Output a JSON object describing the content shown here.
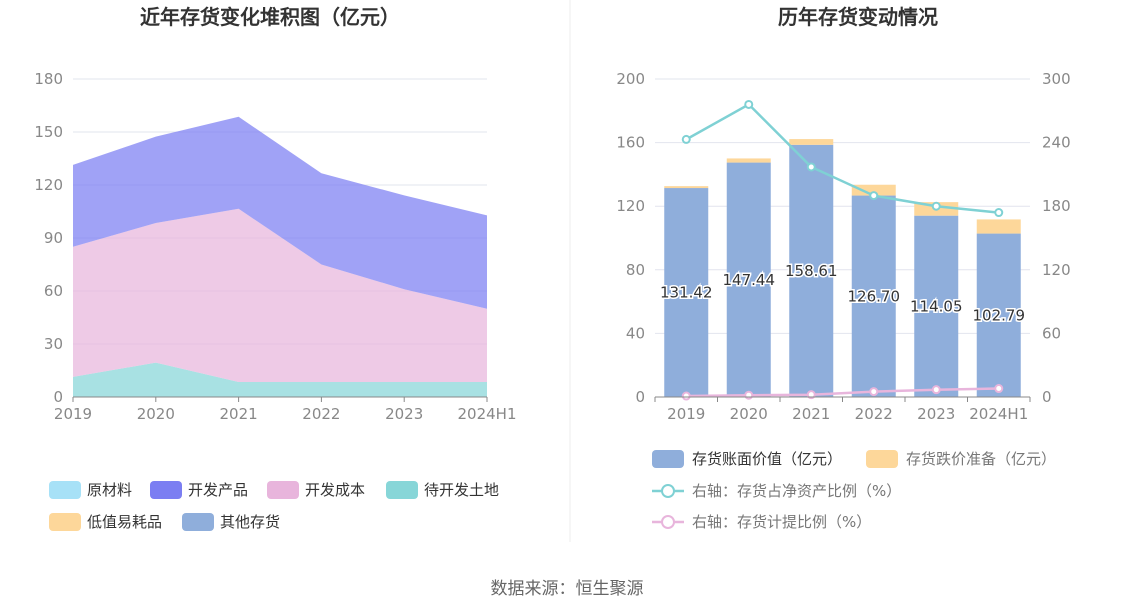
{
  "source_text": "数据来源：恒生聚源",
  "chart_data": [
    {
      "type": "area",
      "stacked": true,
      "title": "近年存货变化堆积图（亿元）",
      "categories": [
        "2019",
        "2020",
        "2021",
        "2022",
        "2023",
        "2024H1"
      ],
      "y_ticks": [
        0,
        30,
        60,
        90,
        120,
        150,
        180
      ],
      "ylim": [
        0,
        180
      ],
      "grid": true,
      "series": [
        {
          "name": "原材料",
          "color": "#a7e1f7",
          "values": [
            0,
            0,
            0,
            0,
            0,
            0
          ]
        },
        {
          "name": "待开发土地",
          "color": "#87d6d8",
          "values": [
            11.4,
            19.5,
            8.5,
            8.5,
            8.5,
            8.5
          ]
        },
        {
          "name": "开发成本",
          "color": "#e8b5dc",
          "values": [
            73.6,
            79.0,
            98.0,
            66.5,
            52.5,
            41.5
          ]
        },
        {
          "name": "开发产品",
          "color": "#7b7ef2",
          "values": [
            46.4,
            48.9,
            52.1,
            51.7,
            53.1,
            52.8
          ]
        },
        {
          "name": "低值易耗品",
          "color": "#fdd79a",
          "values": [
            0,
            0,
            0,
            0,
            0,
            0
          ]
        },
        {
          "name": "其他存货",
          "color": "#8faedb",
          "values": [
            0,
            0,
            0,
            0,
            0,
            0
          ]
        }
      ],
      "legend": [
        {
          "name": "原材料",
          "color": "#a7e1f7"
        },
        {
          "name": "开发产品",
          "color": "#7b7ef2"
        },
        {
          "name": "开发成本",
          "color": "#e8b5dc"
        },
        {
          "name": "待开发土地",
          "color": "#87d6d8"
        },
        {
          "name": "低值易耗品",
          "color": "#fdd79a"
        },
        {
          "name": "其他存货",
          "color": "#8faedb"
        }
      ],
      "legend_position": "bottom"
    },
    {
      "type": "bar",
      "stacked": true,
      "title": "历年存货变动情况",
      "categories": [
        "2019",
        "2020",
        "2021",
        "2022",
        "2023",
        "2024H1"
      ],
      "ylim": [
        0,
        200
      ],
      "y_ticks": [
        0,
        40,
        80,
        120,
        160,
        200
      ],
      "y2lim": [
        0,
        300
      ],
      "y2_ticks": [
        0,
        60,
        120,
        180,
        240,
        300
      ],
      "grid": true,
      "bar_series": [
        {
          "name": "存货账面价值（亿元）",
          "color": "#8faedb",
          "values": [
            131.42,
            147.44,
            158.61,
            126.7,
            114.05,
            102.79
          ],
          "labels": [
            "131.42",
            "147.44",
            "158.61",
            "126.70",
            "114.05",
            "102.79"
          ]
        },
        {
          "name": "存货跌价准备（亿元）",
          "color": "#fdd79a",
          "values": [
            1.2,
            2.6,
            3.6,
            6.8,
            8.5,
            8.9
          ]
        }
      ],
      "line_series": [
        {
          "name": "右轴：存货占净资产比例（%）",
          "color": "#7fd1d4",
          "axis": "right",
          "values": [
            243,
            276,
            217,
            190,
            180,
            174
          ]
        },
        {
          "name": "右轴：存货计提比例（%）",
          "color": "#e8b5dc",
          "axis": "right",
          "values": [
            0.9,
            1.7,
            2.2,
            5.1,
            6.9,
            8.0
          ]
        }
      ],
      "legend_position": "bottom"
    }
  ]
}
